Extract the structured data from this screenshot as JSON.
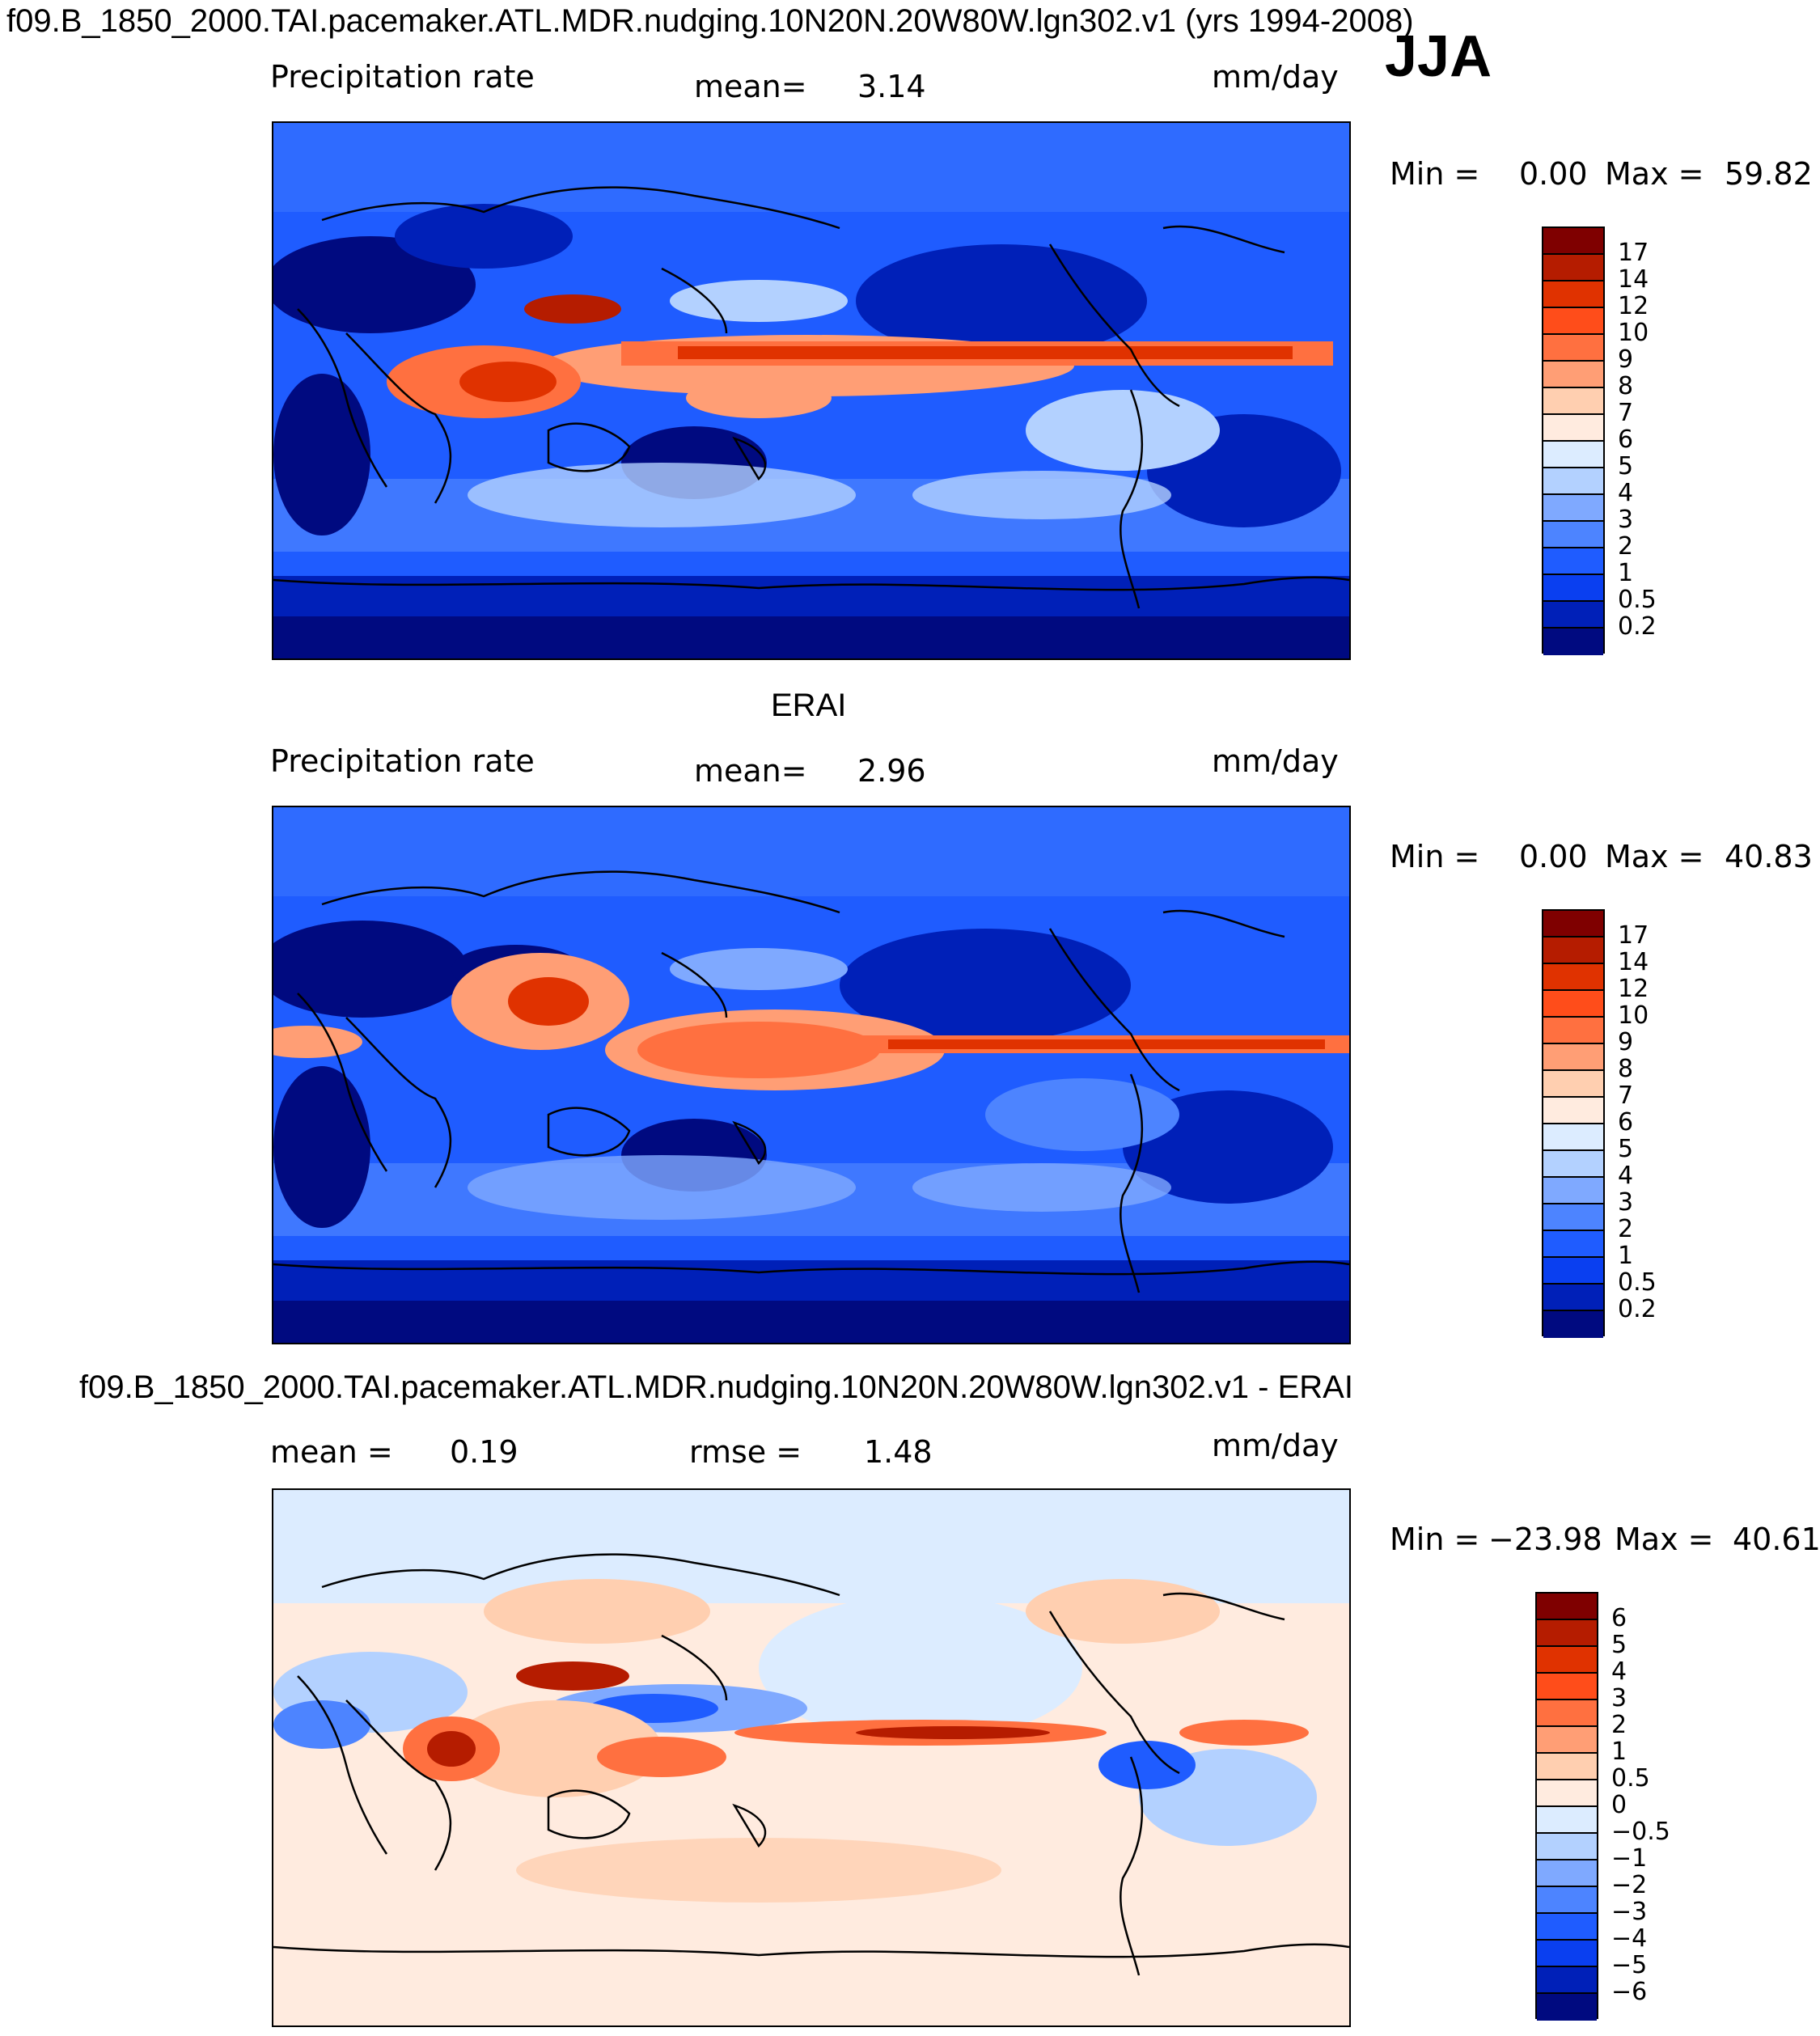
{
  "season": "JJA",
  "panels": [
    {
      "id": "model",
      "title": "f09.B_1850_2000.TAI.pacemaker.ATL.MDR.nudging.10N20N.20W80W.lgn302.v1 (yrs 1994-2008)",
      "variable": "Precipitation rate",
      "left_stat_label": "",
      "left_stat_value": "",
      "stat_label": "mean=",
      "stat_value": "3.14",
      "units": "mm/day",
      "min_label": "Min =",
      "min_value": "0.00",
      "max_label": "Max =",
      "max_value": "59.82",
      "levels": [
        "17",
        "14",
        "12",
        "10",
        "9",
        "8",
        "7",
        "6",
        "5",
        "4",
        "3",
        "2",
        "1",
        "0.5",
        "0.2"
      ],
      "colors": [
        "#7f0000",
        "#b51c00",
        "#e03200",
        "#ff4d1a",
        "#ff7040",
        "#ff9e75",
        "#ffcfb0",
        "#ffebdf",
        "#dcecff",
        "#b3d1ff",
        "#7fa9ff",
        "#4d84ff",
        "#1f5cff",
        "#0a3ff0",
        "#0020b8",
        "#000a80"
      ]
    },
    {
      "id": "obs",
      "title": "ERAI",
      "variable": "Precipitation rate",
      "left_stat_label": "",
      "left_stat_value": "",
      "stat_label": "mean=",
      "stat_value": "2.96",
      "units": "mm/day",
      "min_label": "Min =",
      "min_value": "0.00",
      "max_label": "Max =",
      "max_value": "40.83",
      "levels": [
        "17",
        "14",
        "12",
        "10",
        "9",
        "8",
        "7",
        "6",
        "5",
        "4",
        "3",
        "2",
        "1",
        "0.5",
        "0.2"
      ],
      "colors": [
        "#7f0000",
        "#b51c00",
        "#e03200",
        "#ff4d1a",
        "#ff7040",
        "#ff9e75",
        "#ffcfb0",
        "#ffebdf",
        "#dcecff",
        "#b3d1ff",
        "#7fa9ff",
        "#4d84ff",
        "#1f5cff",
        "#0a3ff0",
        "#0020b8",
        "#000a80"
      ]
    },
    {
      "id": "diff",
      "title": "f09.B_1850_2000.TAI.pacemaker.ATL.MDR.nudging.10N20N.20W80W.lgn302.v1 - ERAI",
      "variable": "",
      "left_stat_label": "mean =",
      "left_stat_value": "0.19",
      "stat_label": "rmse =",
      "stat_value": "1.48",
      "units": "mm/day",
      "min_label": "Min =",
      "min_value": "−23.98",
      "max_label": "Max =",
      "max_value": "40.61",
      "levels": [
        "6",
        "5",
        "4",
        "3",
        "2",
        "1",
        "0.5",
        "0",
        "−0.5",
        "−1",
        "−2",
        "−3",
        "−4",
        "−5",
        "−6"
      ],
      "colors": [
        "#7f0000",
        "#b51c00",
        "#e03200",
        "#ff4d1a",
        "#ff7040",
        "#ff9e75",
        "#ffcfb0",
        "#ffebdf",
        "#dcecff",
        "#b3d1ff",
        "#7fa9ff",
        "#4d84ff",
        "#1f5cff",
        "#0a3ff0",
        "#0020b8",
        "#000a80"
      ]
    }
  ]
}
